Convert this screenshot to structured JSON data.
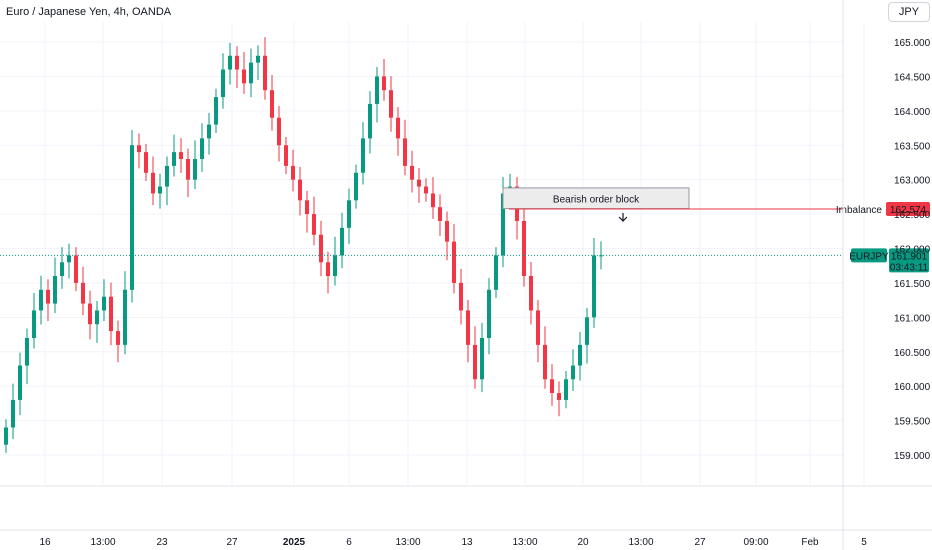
{
  "header": {
    "title": "Euro / Japanese Yen, 4h, OANDA",
    "currency_button": "JPY"
  },
  "chart_data": {
    "type": "candlestick",
    "title": "Euro / Japanese Yen, 4h, OANDA",
    "ylim": [
      158.75,
      165.25
    ],
    "y_ticks": [
      "165.000",
      "164.500",
      "164.000",
      "163.500",
      "163.000",
      "162.500",
      "162.000",
      "161.500",
      "161.000",
      "160.500",
      "160.000",
      "159.500",
      "159.000"
    ],
    "x_ticks": [
      "16",
      "13:00",
      "23",
      "27",
      "2025",
      "6",
      "13:00",
      "13",
      "13:00",
      "20",
      "13:00",
      "27",
      "09:00",
      "Feb",
      "5"
    ],
    "bullish_color": "#089981",
    "bearish_color": "#f23645",
    "close_series": [
      159.4,
      159.8,
      160.3,
      160.7,
      161.1,
      161.4,
      161.2,
      161.6,
      161.8,
      161.9,
      161.5,
      161.2,
      160.9,
      161.1,
      161.3,
      160.8,
      160.6,
      161.4,
      163.5,
      163.4,
      163.1,
      162.8,
      162.9,
      163.2,
      163.4,
      163.3,
      163.0,
      163.3,
      163.6,
      163.8,
      164.2,
      164.6,
      164.8,
      164.6,
      164.4,
      164.7,
      164.8,
      164.3,
      163.9,
      163.5,
      163.2,
      163.0,
      162.7,
      162.5,
      162.2,
      161.8,
      161.6,
      161.9,
      162.3,
      162.7,
      163.1,
      163.6,
      164.1,
      164.5,
      164.3,
      163.9,
      163.6,
      163.2,
      163.0,
      162.9,
      162.8,
      162.6,
      162.4,
      162.1,
      161.5,
      161.1,
      160.6,
      160.1,
      160.7,
      161.4,
      161.9,
      162.8,
      162.9,
      162.4,
      161.6,
      161.1,
      160.6,
      160.1,
      159.9,
      159.8,
      160.1,
      160.3,
      160.6,
      161.0,
      161.9,
      161.9
    ],
    "bearish_order_block": {
      "label": "Bearish order block",
      "from_price": 162.88,
      "to_price": 162.58
    },
    "imbalance": {
      "label": "Imbalance",
      "price": 162.574,
      "price_label": "162.574"
    },
    "current_price": {
      "symbol": "EURJPY",
      "price": 161.901,
      "price_label": "161.901",
      "countdown": "03:43:11"
    }
  }
}
